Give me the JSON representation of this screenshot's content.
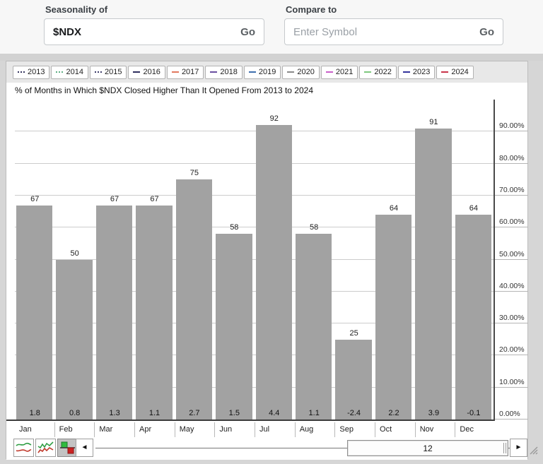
{
  "controls": {
    "seasonality_label": "Seasonality of",
    "seasonality_value": "$NDX",
    "seasonality_go": "Go",
    "compare_label": "Compare to",
    "compare_placeholder": "Enter Symbol",
    "compare_go": "Go"
  },
  "legend": [
    {
      "year": "2013",
      "color": "#35355f",
      "style": "dotted"
    },
    {
      "year": "2014",
      "color": "#5fae84",
      "style": "dotted"
    },
    {
      "year": "2015",
      "color": "#3d3d6b",
      "style": "dotted"
    },
    {
      "year": "2016",
      "color": "#2e2e5e",
      "style": "solid"
    },
    {
      "year": "2017",
      "color": "#e2795f",
      "style": "solid"
    },
    {
      "year": "2018",
      "color": "#6a4fa0",
      "style": "solid"
    },
    {
      "year": "2019",
      "color": "#3f6fae",
      "style": "solid"
    },
    {
      "year": "2020",
      "color": "#8a8a8a",
      "style": "solid"
    },
    {
      "year": "2021",
      "color": "#c95fc9",
      "style": "solid"
    },
    {
      "year": "2022",
      "color": "#7ec87e",
      "style": "solid"
    },
    {
      "year": "2023",
      "color": "#34349c",
      "style": "solid"
    },
    {
      "year": "2024",
      "color": "#c9354a",
      "style": "solid"
    }
  ],
  "chart_data": {
    "type": "bar",
    "title": "% of Months in Which $NDX Closed Higher Than It Opened From 2013 to 2024",
    "categories": [
      "Jan",
      "Feb",
      "Mar",
      "Apr",
      "May",
      "Jun",
      "Jul",
      "Aug",
      "Sep",
      "Oct",
      "Nov",
      "Dec"
    ],
    "values": [
      67,
      50,
      67,
      67,
      75,
      58,
      92,
      58,
      25,
      64,
      91,
      64
    ],
    "avg_returns": [
      "1.8",
      "0.8",
      "1.3",
      "1.1",
      "2.7",
      "1.5",
      "4.4",
      "1.1",
      "-2.4",
      "2.2",
      "3.9",
      "-0.1"
    ],
    "yticks": [
      "0.00%",
      "10.00%",
      "20.00%",
      "30.00%",
      "40.00%",
      "50.00%",
      "60.00%",
      "70.00%",
      "80.00%",
      "90.00%"
    ],
    "ylim": [
      0,
      100
    ],
    "grid": true,
    "legend_position": "top",
    "bar_color": "#a2a2a2",
    "xlabel": "",
    "ylabel": ""
  },
  "footer": {
    "mode_icons": [
      "smooth-line-chart-icon",
      "jagged-line-chart-icon",
      "bar-chart-icon"
    ],
    "selected_mode": "bar-chart-icon",
    "left_arrow": "◄",
    "right_arrow": "►",
    "scroll_thumb_value": "12"
  }
}
